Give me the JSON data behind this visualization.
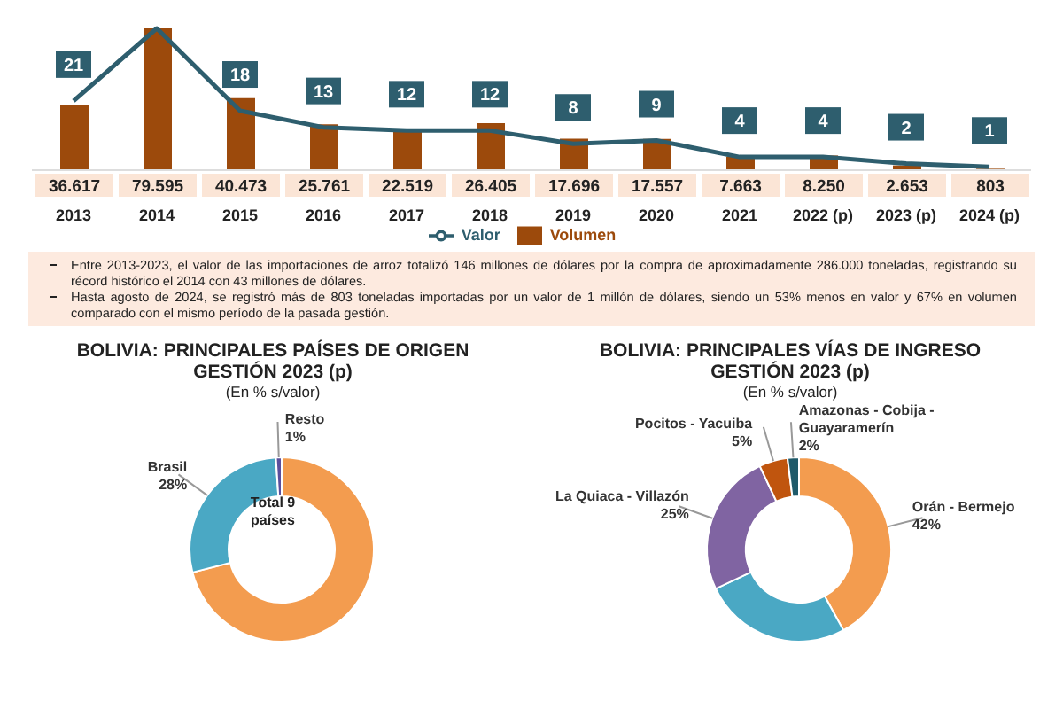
{
  "chart_data": [
    {
      "type": "bar",
      "categories": [
        "2013",
        "2014",
        "2015",
        "2016",
        "2017",
        "2018",
        "2019",
        "2020",
        "2021",
        "2022 (p)",
        "2023 (p)",
        "2024 (p)"
      ],
      "legend": "bottom",
      "marker": "none",
      "series": [
        {
          "name": "Volumen",
          "type": "bar",
          "color": "#9c4a0c",
          "values": [
            36617,
            79595,
            40473,
            25761,
            22519,
            26405,
            17696,
            17557,
            7663,
            8250,
            2653,
            803
          ],
          "value_labels": [
            "36.617",
            "79.595",
            "40.473",
            "25.761",
            "22.519",
            "26.405",
            "17.696",
            "17.557",
            "7.663",
            "8.250",
            "2.653",
            "803"
          ]
        },
        {
          "name": "Valor",
          "type": "line",
          "axis": "y2",
          "color": "#2e5e6e",
          "values": [
            21,
            43,
            18,
            13,
            12,
            12,
            8,
            9,
            4,
            4,
            2,
            1
          ],
          "value_labels": [
            "21",
            null,
            "18",
            "13",
            "12",
            "12",
            "8",
            "9",
            "4",
            "4",
            "2",
            "1"
          ]
        }
      ],
      "annotations": [
        "Entre 2013-2023, el valor de las importaciones de arroz totalizó 146 millones de dólares por la compra de aproximadamente 286.000 toneladas, registrando su récord histórico el 2014 con 43 millones de dólares.",
        "Hasta agosto de 2024, se registró más de 803 toneladas importadas por un valor de 1 millón de dólares, siendo un 53% menos en valor y 67% en volumen comparado con el mismo período de la pasada gestión."
      ]
    },
    {
      "type": "donut",
      "title": "BOLIVIA: PRINCIPALES PAÍSES DE ORIGEN GESTIÓN 2023 (p)",
      "subtitle": "(En % s/valor)",
      "categories": [
        null,
        "Brasil",
        "Resto"
      ],
      "values": [
        71,
        28,
        1
      ],
      "value_labels": [
        null,
        "28%",
        "1%"
      ],
      "colors": [
        "#f39c4f",
        "#4aa8c4",
        "#5a4e9c"
      ],
      "annotations": [
        "Total 9 países"
      ]
    },
    {
      "type": "donut",
      "title": "BOLIVIA: PRINCIPALES VÍAS DE INGRESO GESTIÓN 2023 (p)",
      "subtitle": "(En % s/valor)",
      "categories": [
        "Orán - Bermejo",
        null,
        "La Quiaca - Villazón",
        "Pocitos - Yacuiba",
        "Amazonas - Cobija - Guayaramerín"
      ],
      "values": [
        42,
        26,
        25,
        5,
        2
      ],
      "value_labels": [
        "42%",
        null,
        "25%",
        "5%",
        "2%"
      ],
      "colors": [
        "#f39c4f",
        "#4aa8c4",
        "#8064a2",
        "#c0550e",
        "#1f5a6a"
      ]
    }
  ]
}
